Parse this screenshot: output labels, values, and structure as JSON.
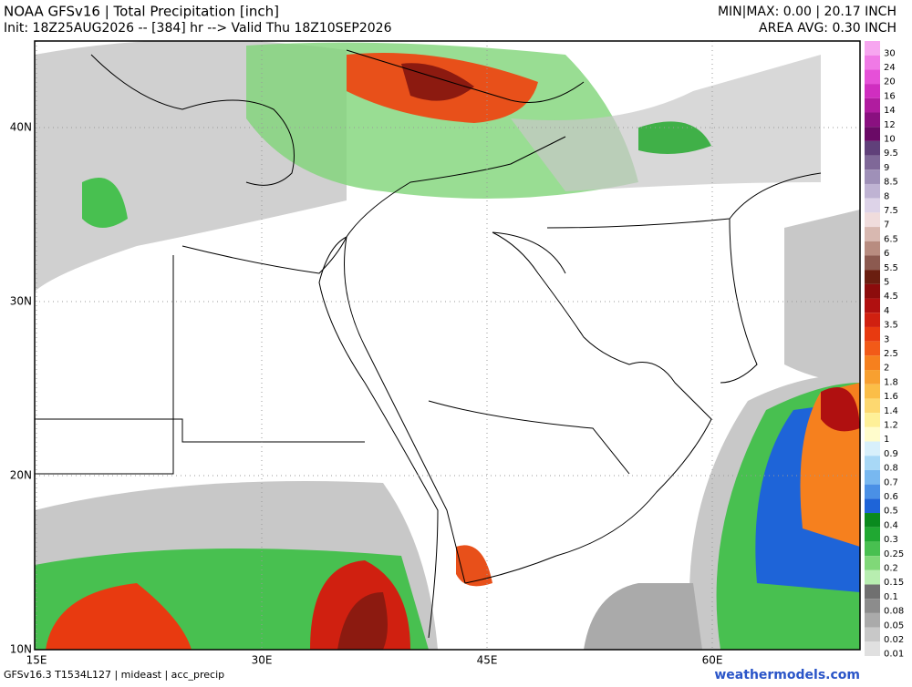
{
  "header": {
    "title": "NOAA GFSv16 |  Total Precipitation [inch]",
    "subtitle": "Init: 18Z25AUG2026 -- [384] hr --> Valid Thu 18Z10SEP2026",
    "minmax": "MIN|MAX: 0.00 | 20.17 INCH",
    "area_avg": "AREA AVG: 0.30 INCH"
  },
  "map": {
    "lon_labels": [
      "15E",
      "30E",
      "45E",
      "60E"
    ],
    "lat_labels": [
      "40N",
      "30N",
      "20N",
      "10N"
    ]
  },
  "colorbar": {
    "levels": [
      {
        "label": "30",
        "color": "#f7a6f0"
      },
      {
        "label": "24",
        "color": "#f07ae6"
      },
      {
        "label": "20",
        "color": "#e650d8"
      },
      {
        "label": "16",
        "color": "#d02ec0"
      },
      {
        "label": "14",
        "color": "#b01c9f"
      },
      {
        "label": "12",
        "color": "#8a1080"
      },
      {
        "label": "10",
        "color": "#6a0a66"
      },
      {
        "label": "9.5",
        "color": "#60407a"
      },
      {
        "label": "9",
        "color": "#7f6898"
      },
      {
        "label": "8.5",
        "color": "#9f90b8"
      },
      {
        "label": "8",
        "color": "#bfb3d3"
      },
      {
        "label": "7.5",
        "color": "#ddd3e8"
      },
      {
        "label": "7",
        "color": "#f0dcdc"
      },
      {
        "label": "6.5",
        "color": "#d8b8b0"
      },
      {
        "label": "6",
        "color": "#b88c80"
      },
      {
        "label": "5.5",
        "color": "#8c5a50"
      },
      {
        "label": "5",
        "color": "#6a1e10"
      },
      {
        "label": "4.5",
        "color": "#8c0c0c"
      },
      {
        "label": "4",
        "color": "#b01010"
      },
      {
        "label": "3.5",
        "color": "#d02010"
      },
      {
        "label": "3",
        "color": "#e83a10"
      },
      {
        "label": "2.5",
        "color": "#f25a18"
      },
      {
        "label": "2",
        "color": "#f6801e"
      },
      {
        "label": "1.8",
        "color": "#f8a030"
      },
      {
        "label": "1.6",
        "color": "#fbbe48"
      },
      {
        "label": "1.4",
        "color": "#fdd870"
      },
      {
        "label": "1.2",
        "color": "#fef098"
      },
      {
        "label": "1",
        "color": "#fffccc"
      },
      {
        "label": "0.9",
        "color": "#d8f0fb"
      },
      {
        "label": "0.8",
        "color": "#a8d8f6"
      },
      {
        "label": "0.7",
        "color": "#78b8f0"
      },
      {
        "label": "0.6",
        "color": "#4a90e6"
      },
      {
        "label": "0.5",
        "color": "#1e64d8"
      },
      {
        "label": "0.4",
        "color": "#0a8a1e"
      },
      {
        "label": "0.3",
        "color": "#20a832"
      },
      {
        "label": "0.25",
        "color": "#48c050"
      },
      {
        "label": "0.2",
        "color": "#80d878"
      },
      {
        "label": "0.15",
        "color": "#b8eeb0"
      },
      {
        "label": "0.1",
        "color": "#707070"
      },
      {
        "label": "0.08",
        "color": "#8c8c8c"
      },
      {
        "label": "0.05",
        "color": "#aaaaaa"
      },
      {
        "label": "0.02",
        "color": "#c8c8c8"
      },
      {
        "label": "0.01",
        "color": "#e0e0e0"
      }
    ]
  },
  "footer": {
    "model": "GFSv16.3 T1534L127 | mideast | acc_precip",
    "site": "weathermodels.com"
  }
}
